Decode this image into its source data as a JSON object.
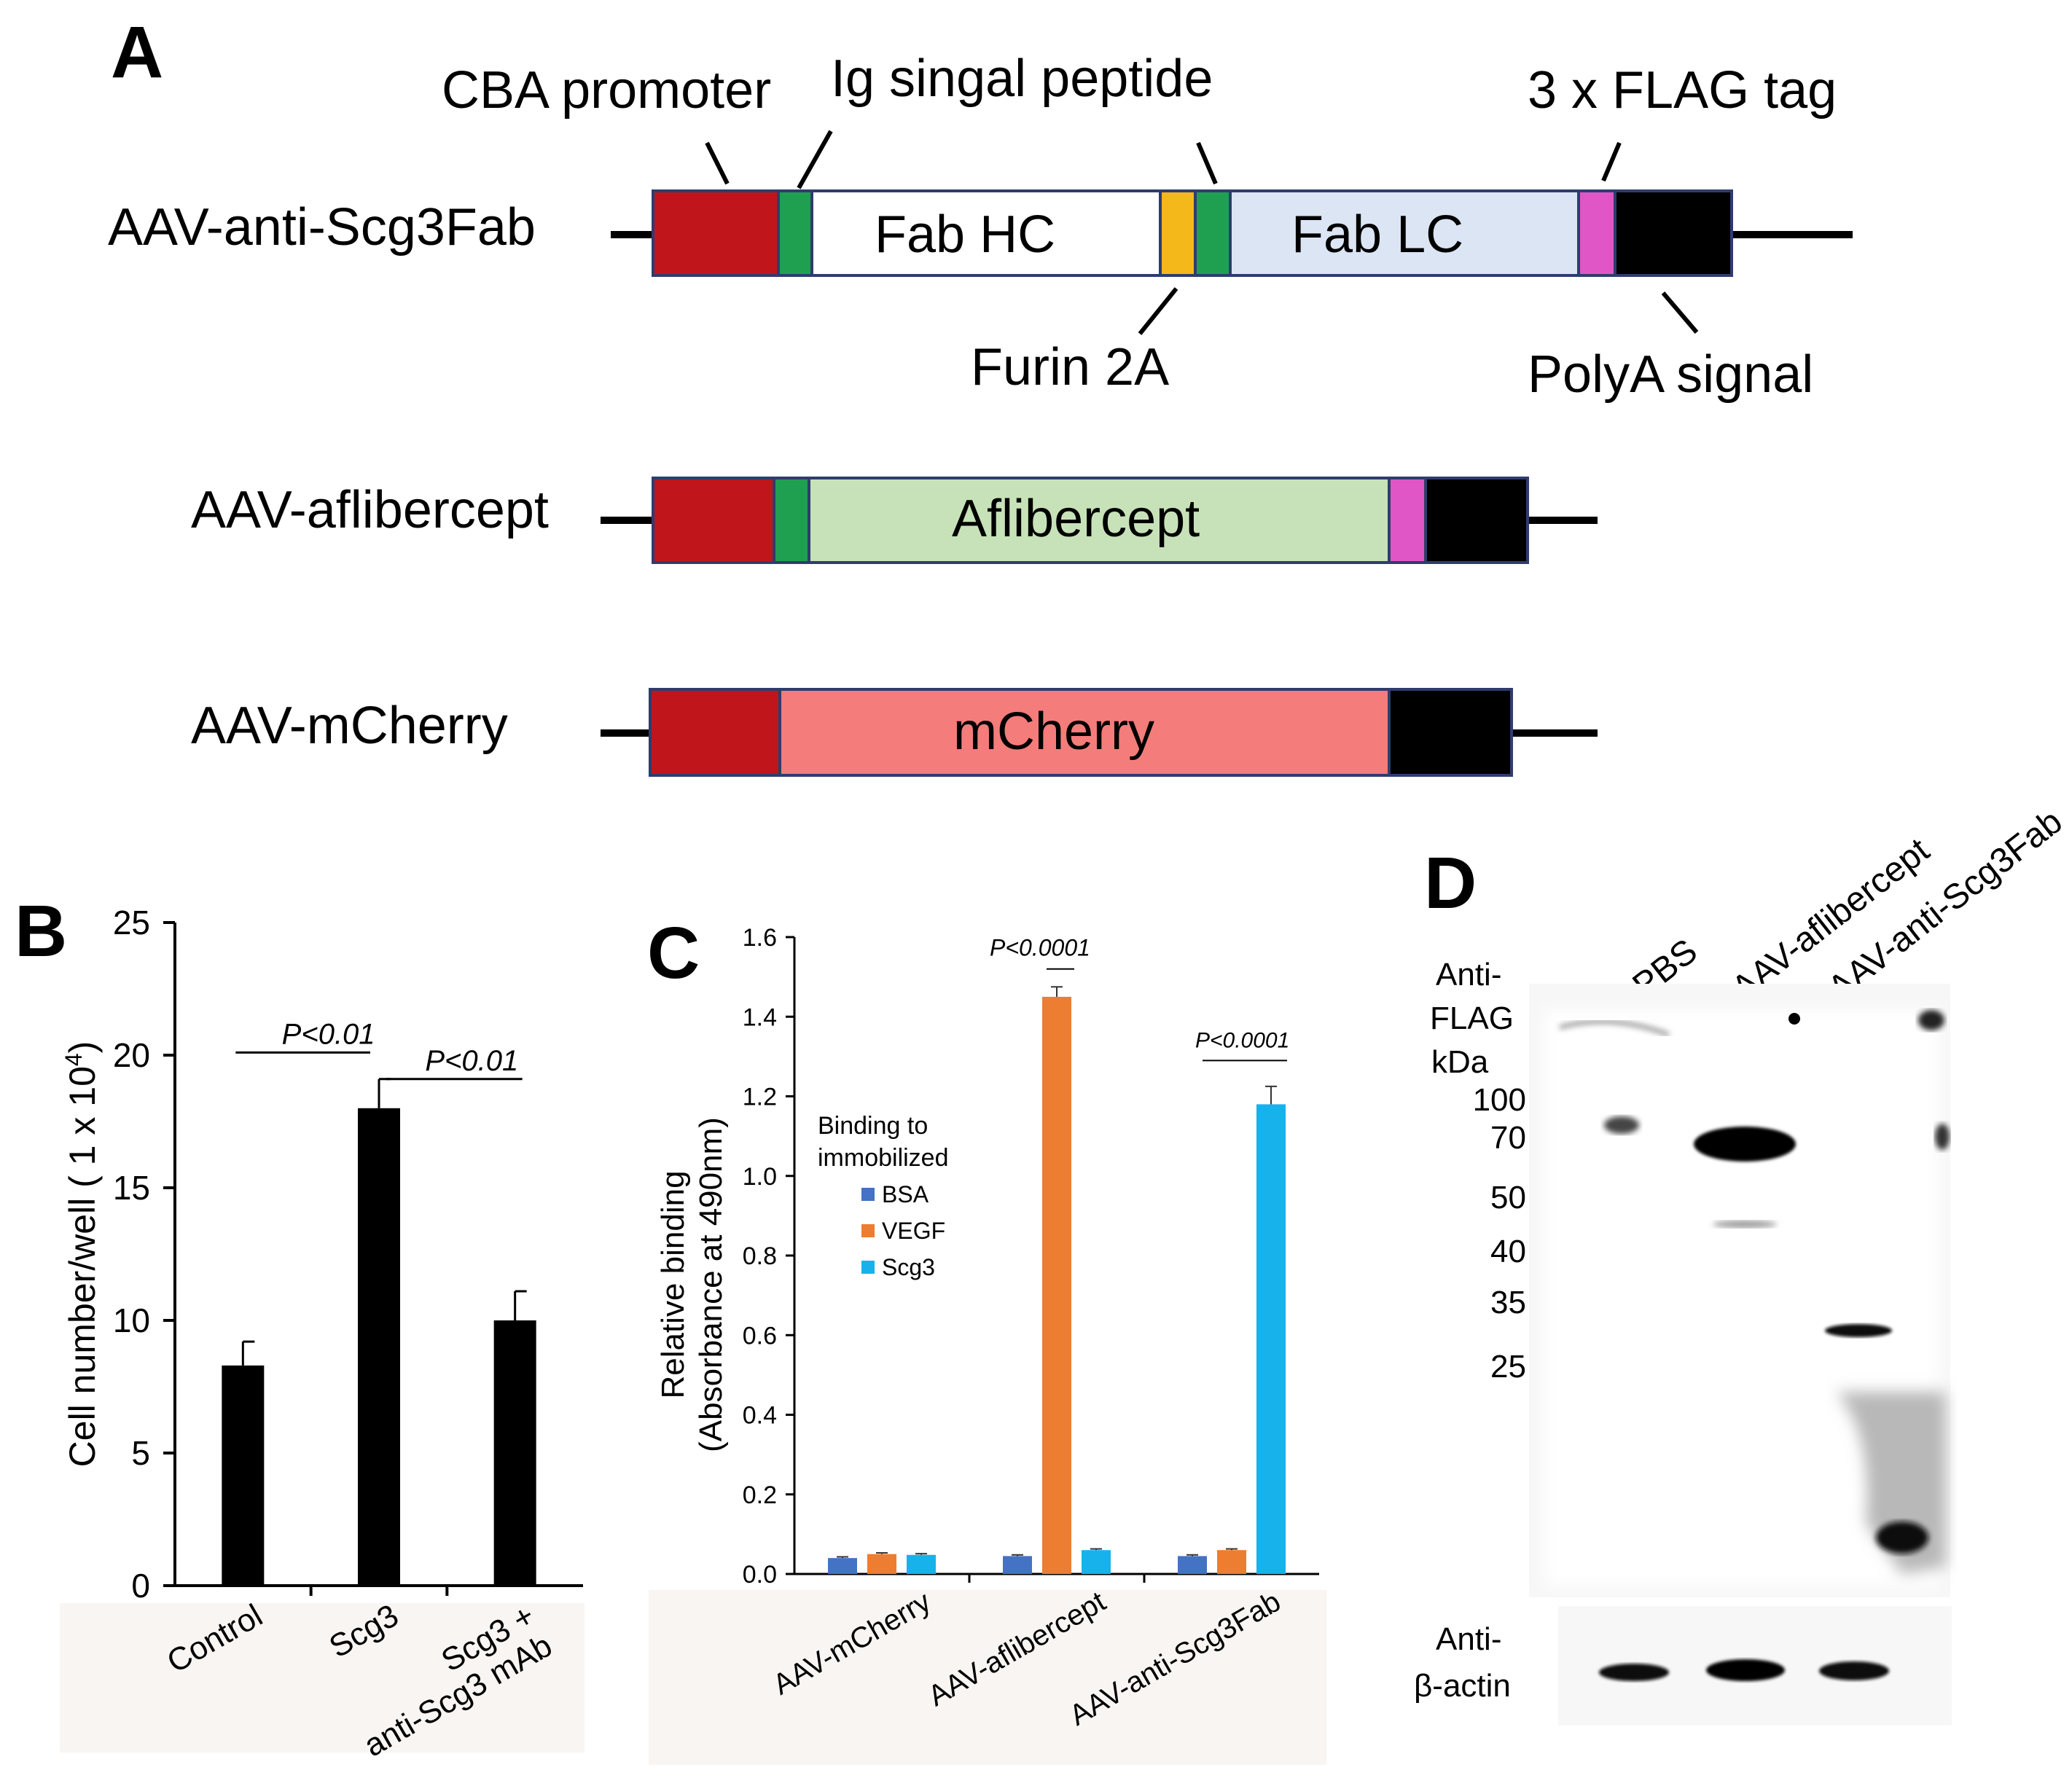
{
  "panel_a": {
    "letter": "A",
    "annotations": {
      "cba_promoter": "CBA promoter",
      "ig_signal": "Ig singal peptide",
      "flag_tag": "3 x FLAG tag",
      "furin": "Furin 2A",
      "polya": "PolyA signal"
    },
    "constructs": [
      {
        "name": "AAV-anti-Scg3Fab",
        "segments": [
          "Fab HC",
          "Fab LC"
        ]
      },
      {
        "name": "AAV-aflibercept",
        "segments": [
          "Aflibercept"
        ]
      },
      {
        "name": "AAV-mCherry",
        "segments": [
          "mCherry"
        ]
      }
    ],
    "colors": {
      "promoter": "#c0161b",
      "signal_peptide": "#1fa050",
      "furin": "#f5b81a",
      "flag": "#e056c7",
      "polya": "#000000",
      "fab_hc": "#ffffff",
      "fab_lc": "#dbe5f4",
      "aflibercept": "#c7e2b8",
      "mcherry": "#f47c7a",
      "outline": "#2f3c6e"
    }
  },
  "chart_data": [
    {
      "panel": "B",
      "type": "bar",
      "categories": [
        "Control",
        "Scg3",
        "Scg3 +\nanti-Scg3 mAb"
      ],
      "values": [
        8.3,
        18.0,
        10.0
      ],
      "errors": [
        0.9,
        1.1,
        1.1
      ],
      "ylabel": "Cell number/well ( 1 x 10^4)",
      "ylim": [
        0,
        25
      ],
      "yticks": [
        "0",
        "5",
        "10",
        "15",
        "20",
        "25"
      ],
      "annotations": [
        "P<0.01",
        "P<0.01"
      ],
      "bar_color": "#000000",
      "grid": false
    },
    {
      "panel": "C",
      "type": "bar",
      "categories": [
        "AAV-mCherry",
        "AAV-aflibercept",
        "AAV-anti-Scg3Fab"
      ],
      "series": [
        {
          "name": "BSA",
          "color": "#4472c4",
          "values": [
            0.04,
            0.045,
            0.045
          ],
          "errors": [
            0.003,
            0.003,
            0.003
          ]
        },
        {
          "name": "VEGF",
          "color": "#ed7d31",
          "values": [
            0.05,
            1.45,
            0.06
          ],
          "errors": [
            0.003,
            0.025,
            0.003
          ]
        },
        {
          "name": "Scg3",
          "color": "#17b2ec",
          "values": [
            0.048,
            0.06,
            1.18
          ],
          "errors": [
            0.003,
            0.003,
            0.045
          ]
        }
      ],
      "ylabel_line1": "Relative binding",
      "ylabel_line2": "(Absorbance at 490nm)",
      "ylim": [
        0,
        1.6
      ],
      "yticks": [
        "0.0",
        "0.2",
        "0.4",
        "0.6",
        "0.8",
        "1.0",
        "1.2",
        "1.4",
        "1.6"
      ],
      "legend_title_1": "Binding to",
      "legend_title_2": "immobilized",
      "legend_position": "upper-left",
      "annotations": [
        "P<0.0001",
        "P<0.0001"
      ],
      "grid": false
    }
  ],
  "panel_b": {
    "letter": "B"
  },
  "panel_c": {
    "letter": "C"
  },
  "panel_d": {
    "letter": "D",
    "lanes": [
      "PBS",
      "AAV-aflibercept",
      "AAV-anti-Scg3Fab"
    ],
    "blot_label_line1": "Anti-",
    "blot_label_line2": "FLAG",
    "kda_label": "kDa",
    "markers": [
      "100",
      "70",
      "50",
      "40",
      "35",
      "25"
    ],
    "actin_label_line1": "Anti-",
    "actin_label_line2": "β-actin"
  }
}
